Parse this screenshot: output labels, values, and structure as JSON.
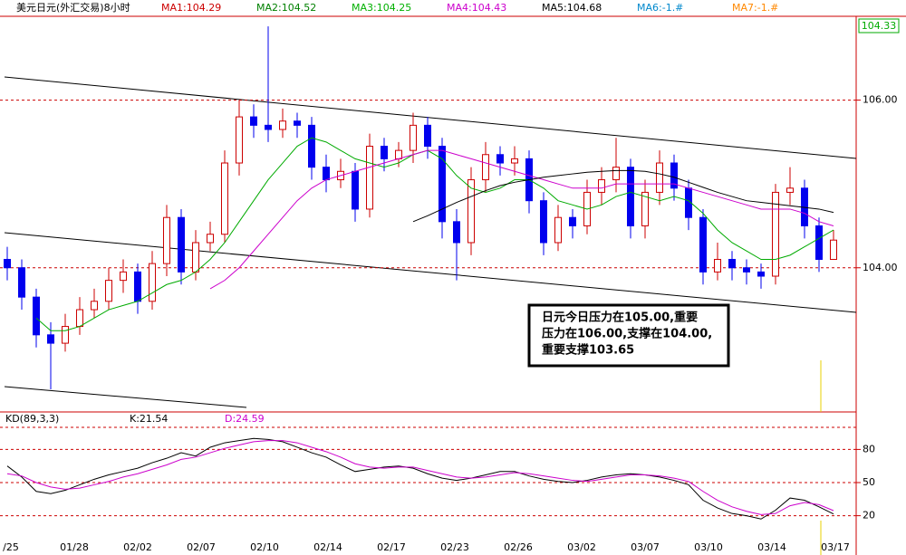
{
  "chart_data": [
    {
      "type": "candlestick",
      "title": "美元日元(外汇交易)8小时",
      "indicator_labels": [
        {
          "text": "MA1:104.29",
          "color": "#cc0000"
        },
        {
          "text": "MA2:104.52",
          "color": "#008000"
        },
        {
          "text": "MA3:104.25",
          "color": "#00b000"
        },
        {
          "text": "MA4:104.43",
          "color": "#cc00cc"
        },
        {
          "text": "MA5:104.68",
          "color": "#000000"
        },
        {
          "text": "MA6:-1.#",
          "color": "#0088cc"
        },
        {
          "text": "MA7:-1.#",
          "color": "#ff8800"
        }
      ],
      "open": [
        104.1,
        104.0,
        103.65,
        103.2,
        103.1,
        103.3,
        103.5,
        103.6,
        103.85,
        103.95,
        103.6,
        104.05,
        104.6,
        103.95,
        104.3,
        104.4,
        105.25,
        105.8,
        105.7,
        105.65,
        105.75,
        105.7,
        105.2,
        105.05,
        105.15,
        104.7,
        105.45,
        105.3,
        105.4,
        105.7,
        105.45,
        104.55,
        104.3,
        105.05,
        105.35,
        105.25,
        105.3,
        104.8,
        104.3,
        104.6,
        104.5,
        104.9,
        105.05,
        105.2,
        104.5,
        104.9,
        105.25,
        104.95,
        104.6,
        103.95,
        104.1,
        104.0,
        103.95,
        103.9,
        104.9,
        104.95,
        104.5,
        104.1
      ],
      "high": [
        104.25,
        104.1,
        103.75,
        103.35,
        103.45,
        103.65,
        103.75,
        104.0,
        104.1,
        104.05,
        104.2,
        104.75,
        104.7,
        104.45,
        104.55,
        105.4,
        106.0,
        105.95,
        106.88,
        105.9,
        105.85,
        105.8,
        105.35,
        105.3,
        105.25,
        105.6,
        105.55,
        105.5,
        105.85,
        105.8,
        105.55,
        104.7,
        105.2,
        105.5,
        105.45,
        105.45,
        105.4,
        104.9,
        104.75,
        104.7,
        105.05,
        105.2,
        105.55,
        105.3,
        105.05,
        105.4,
        105.35,
        105.05,
        104.7,
        104.3,
        104.2,
        104.1,
        104.05,
        105.0,
        105.2,
        105.05,
        104.6,
        104.45
      ],
      "low": [
        103.85,
        103.5,
        103.05,
        102.55,
        103.0,
        103.2,
        103.4,
        103.5,
        103.7,
        103.45,
        103.5,
        103.9,
        103.8,
        103.85,
        104.2,
        104.3,
        105.1,
        105.55,
        105.5,
        105.55,
        105.55,
        105.05,
        104.9,
        104.95,
        104.55,
        104.6,
        105.15,
        105.2,
        105.25,
        105.3,
        104.35,
        103.85,
        104.15,
        104.9,
        105.1,
        105.1,
        104.65,
        104.15,
        104.2,
        104.35,
        104.4,
        104.75,
        104.9,
        104.35,
        104.35,
        104.75,
        104.8,
        104.45,
        103.8,
        103.85,
        103.85,
        103.8,
        103.75,
        103.8,
        104.75,
        104.35,
        103.95,
        104.1
      ],
      "close": [
        104.0,
        103.65,
        103.2,
        103.1,
        103.3,
        103.5,
        103.6,
        103.85,
        103.95,
        103.6,
        104.05,
        104.6,
        103.95,
        104.3,
        104.4,
        105.25,
        105.8,
        105.7,
        105.65,
        105.75,
        105.7,
        105.2,
        105.05,
        105.15,
        104.7,
        105.45,
        105.3,
        105.4,
        105.7,
        105.45,
        104.55,
        104.3,
        105.05,
        105.35,
        105.25,
        105.3,
        104.8,
        104.3,
        104.6,
        104.5,
        104.9,
        105.05,
        105.2,
        104.5,
        104.9,
        105.25,
        104.95,
        104.6,
        103.95,
        104.1,
        104.0,
        103.95,
        103.9,
        104.9,
        104.95,
        104.5,
        104.1,
        104.33
      ],
      "up_color": "#cc0000",
      "down_color": "#0000ee",
      "series": [
        {
          "color": "#00aa00",
          "values": [
            null,
            null,
            103.4,
            103.25,
            103.25,
            103.3,
            103.4,
            103.5,
            103.55,
            103.6,
            103.7,
            103.8,
            103.85,
            103.95,
            104.1,
            104.3,
            104.55,
            104.8,
            105.05,
            105.25,
            105.45,
            105.55,
            105.5,
            105.4,
            105.3,
            105.25,
            105.2,
            105.25,
            105.35,
            105.4,
            105.3,
            105.1,
            104.95,
            104.9,
            104.95,
            105.05,
            105.05,
            104.95,
            104.8,
            104.75,
            104.7,
            104.75,
            104.85,
            104.9,
            104.85,
            104.8,
            104.85,
            104.8,
            104.65,
            104.45,
            104.3,
            104.2,
            104.1,
            104.1,
            104.15,
            104.25,
            104.35,
            104.45
          ]
        },
        {
          "color": "#cc00cc",
          "values": [
            null,
            null,
            null,
            null,
            null,
            null,
            null,
            null,
            null,
            null,
            null,
            null,
            null,
            null,
            103.75,
            103.85,
            104.0,
            104.2,
            104.4,
            104.6,
            104.8,
            104.95,
            105.05,
            105.1,
            105.15,
            105.2,
            105.25,
            105.3,
            105.35,
            105.4,
            105.4,
            105.35,
            105.3,
            105.25,
            105.2,
            105.15,
            105.1,
            105.05,
            105.0,
            104.95,
            104.95,
            104.95,
            105.0,
            105.0,
            105.0,
            105.0,
            105.0,
            104.95,
            104.9,
            104.85,
            104.8,
            104.75,
            104.7,
            104.7,
            104.7,
            104.65,
            104.55,
            104.5
          ]
        },
        {
          "color": "#000000",
          "values": [
            null,
            null,
            null,
            null,
            null,
            null,
            null,
            null,
            null,
            null,
            null,
            null,
            null,
            null,
            null,
            null,
            null,
            null,
            null,
            null,
            null,
            null,
            null,
            null,
            null,
            null,
            null,
            null,
            104.55,
            104.62,
            104.7,
            104.78,
            104.85,
            104.92,
            104.98,
            105.02,
            105.05,
            105.08,
            105.1,
            105.12,
            105.14,
            105.15,
            105.16,
            105.16,
            105.15,
            105.12,
            105.08,
            105.02,
            104.96,
            104.9,
            104.85,
            104.8,
            104.78,
            104.76,
            104.74,
            104.72,
            104.7,
            104.66
          ]
        }
      ],
      "ylim": [
        102.28,
        107.0
      ],
      "yticks": [
        {
          "value": 104,
          "label": "104.00"
        },
        {
          "value": 106,
          "label": "106.00"
        }
      ],
      "grid": true,
      "last_price": 104.33,
      "annotation": [
        "日元今日压力在105.00,重要",
        "压力在106.00,支撑在104.00,",
        "重要支撑103.65"
      ],
      "date_labels": [
        "/25",
        "01/28",
        "02/02",
        "02/07",
        "02/10",
        "02/14",
        "02/17",
        "02/23",
        "02/26",
        "03/02",
        "03/07",
        "03/10",
        "03/14",
        "03/17"
      ]
    },
    {
      "type": "line",
      "title": "KD(89,3,3)",
      "series": [
        {
          "label": "K:21.54",
          "color": "#000000",
          "values": [
            65,
            55,
            42,
            40,
            43,
            48,
            53,
            57,
            60,
            63,
            68,
            72,
            77,
            74,
            82,
            86,
            88,
            90,
            89,
            87,
            82,
            77,
            73,
            66,
            60,
            62,
            64,
            65,
            63,
            58,
            54,
            52,
            54,
            57,
            60,
            60,
            56,
            53,
            51,
            50,
            52,
            55,
            57,
            58,
            57,
            55,
            52,
            48,
            34,
            27,
            22,
            20,
            17,
            25,
            36,
            34,
            28,
            21.54
          ]
        },
        {
          "label": "D:24.59",
          "color": "#cc00cc",
          "values": [
            58,
            56,
            50,
            46,
            44,
            45,
            48,
            51,
            55,
            58,
            62,
            66,
            71,
            73,
            77,
            81,
            84,
            87,
            88,
            88,
            86,
            82,
            78,
            73,
            67,
            64,
            63,
            64,
            64,
            61,
            58,
            55,
            54,
            55,
            57,
            59,
            58,
            56,
            54,
            52,
            51,
            53,
            55,
            57,
            57,
            56,
            54,
            51,
            42,
            34,
            28,
            24,
            21,
            22,
            29,
            32,
            30,
            24.59
          ]
        }
      ],
      "ylim": [
        0,
        100
      ],
      "yticks": [
        20,
        50,
        80
      ],
      "grid": true
    }
  ]
}
